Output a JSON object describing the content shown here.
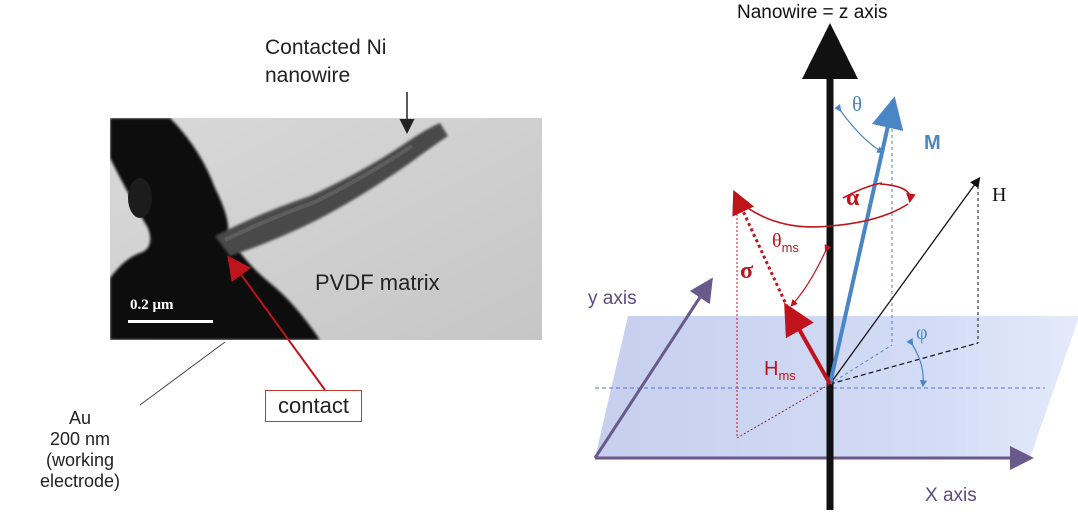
{
  "left": {
    "nanowire_label_line1": "Contacted Ni",
    "nanowire_label_line2": "nanowire",
    "matrix_label": "PVDF matrix",
    "scale_label": "0.2 μm",
    "contact_label": "contact",
    "au_line1": "Au",
    "au_line2": "200 nm",
    "au_line3": "(working",
    "au_line4": "electrode)"
  },
  "right": {
    "z_axis_label": "Nanowire = z axis",
    "y_axis_label": "y axis",
    "x_axis_label": "X axis",
    "theta": "θ",
    "M": "M",
    "alpha": "α",
    "H": "H",
    "theta_ms_main": "θ",
    "theta_ms_sub": "ms",
    "sigma": "σ",
    "H_ms_main": "H",
    "H_ms_sub": "ms",
    "phi": "φ"
  },
  "colors": {
    "red": "#c0141c",
    "blue": "#4a86c5",
    "purple": "#6a5a8c",
    "plane": "#c9d3ef"
  }
}
